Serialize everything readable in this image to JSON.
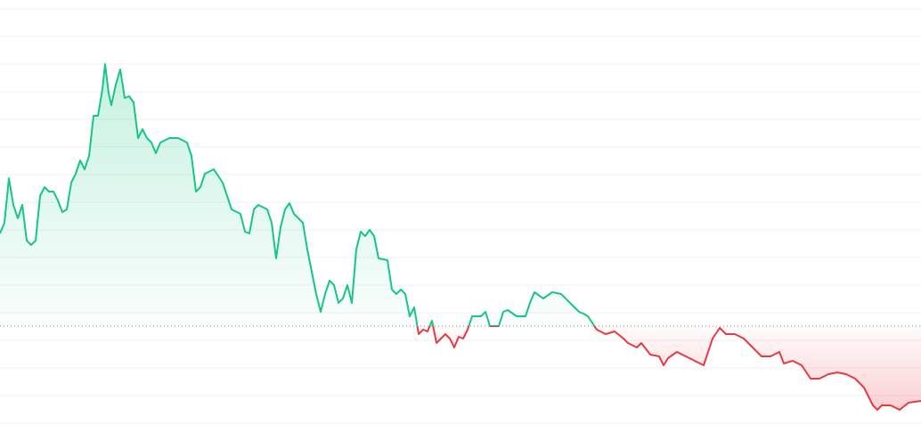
{
  "chart_data": {
    "type": "line",
    "x": [
      0,
      5,
      10,
      15,
      20,
      25,
      30,
      35,
      40,
      45,
      50,
      55,
      60,
      65,
      70,
      75,
      80,
      85,
      90,
      95,
      100,
      105,
      110,
      115,
      118,
      122,
      125,
      130,
      135,
      140,
      145,
      150,
      155,
      160,
      165,
      170,
      175,
      180,
      190,
      200,
      210,
      215,
      220,
      225,
      230,
      240,
      250,
      260,
      270,
      275,
      280,
      285,
      290,
      300,
      305,
      310,
      315,
      320,
      325,
      330,
      340,
      345,
      350,
      355,
      360,
      365,
      370,
      375,
      380,
      385,
      390,
      395,
      400,
      405,
      410,
      415,
      420,
      425,
      435,
      440,
      445,
      450,
      455,
      460,
      465,
      470,
      475,
      480,
      485,
      490,
      495,
      500,
      505,
      510,
      515,
      520,
      525,
      530,
      540,
      545,
      550,
      560,
      565,
      570,
      580,
      590,
      595,
      600,
      610,
      620,
      630,
      640,
      650,
      655,
      660,
      670,
      680,
      690,
      700,
      705,
      715,
      720,
      730,
      740,
      745,
      750,
      760,
      770,
      780,
      790,
      800,
      808,
      815,
      825,
      835,
      845,
      855,
      865,
      875,
      880,
      890,
      900,
      910,
      920,
      930,
      940,
      950,
      960,
      970,
      980,
      985,
      990,
      1000,
      1010,
      1020,
      1034
    ],
    "values": [
      213,
      225,
      275,
      245,
      230,
      245,
      205,
      200,
      205,
      255,
      265,
      260,
      260,
      250,
      237,
      240,
      270,
      280,
      295,
      285,
      300,
      345,
      345,
      375,
      403,
      370,
      357,
      380,
      397,
      365,
      367,
      360,
      320,
      330,
      320,
      315,
      303,
      315,
      320,
      320,
      315,
      300,
      260,
      265,
      280,
      285,
      270,
      240,
      235,
      215,
      213,
      240,
      245,
      240,
      225,
      185,
      220,
      240,
      247,
      235,
      225,
      195,
      170,
      145,
      125,
      145,
      160,
      155,
      135,
      140,
      155,
      135,
      195,
      215,
      210,
      217,
      210,
      185,
      183,
      150,
      145,
      150,
      145,
      120,
      130,
      100,
      105,
      103,
      115,
      90,
      95,
      100,
      95,
      85,
      97,
      95,
      105,
      120,
      120,
      125,
      109,
      109,
      125,
      127,
      120,
      120,
      135,
      147,
      140,
      147,
      145,
      135,
      125,
      123,
      120,
      105,
      100,
      103,
      95,
      90,
      85,
      90,
      77,
      75,
      65,
      73,
      80,
      75,
      70,
      65,
      95,
      107,
      100,
      100,
      95,
      85,
      75,
      75,
      80,
      67,
      70,
      65,
      50,
      50,
      55,
      57,
      55,
      50,
      40,
      20,
      15,
      20,
      20,
      15,
      23,
      25
    ],
    "xlim": [
      0,
      1034
    ],
    "ylim": [
      -11,
      475
    ],
    "yticks": [
      0,
      31,
      62,
      93,
      124,
      155,
      186,
      217,
      248,
      279,
      310,
      341,
      372,
      403,
      434,
      465
    ],
    "baseline": 109,
    "up_color": "#16c784",
    "down_color": "#ea3943",
    "grid": true
  }
}
